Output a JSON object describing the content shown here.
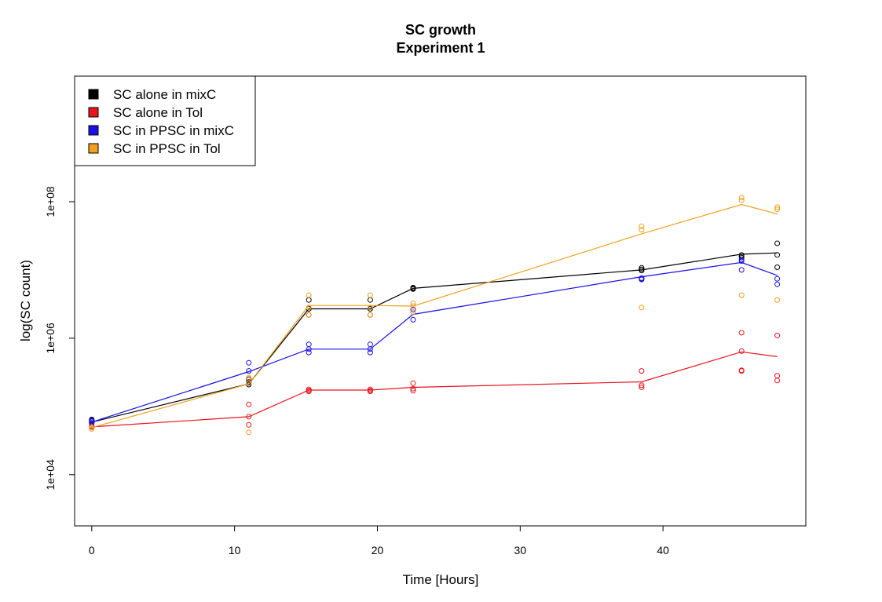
{
  "chart_data": {
    "type": "line",
    "title": "SC growth",
    "subtitle": "Experiment 1",
    "xlabel": "Time [Hours]",
    "ylabel": "log(SC count)",
    "y_scale": "log10",
    "xlim": [
      -1.2,
      50
    ],
    "ylim_log10": [
      3.25,
      9.84
    ],
    "x_ticks": [
      0,
      10,
      20,
      30,
      40
    ],
    "x_tick_labels": [
      "0",
      "10",
      "20",
      "30",
      "40"
    ],
    "y_ticks_log10": [
      4,
      6,
      8
    ],
    "y_tick_labels": [
      "1e+04",
      "1e+06",
      "1e+08"
    ],
    "grid": false,
    "legend_position": "top-left",
    "series": [
      {
        "name": "SC alone in mixC",
        "color": "#000000",
        "line_x": [
          0,
          11,
          15.2,
          19.5,
          22.5,
          38.5,
          45.5,
          48
        ],
        "line_log10": [
          4.77,
          5.33,
          6.43,
          6.43,
          6.73,
          7.0,
          7.23,
          7.25
        ],
        "points": [
          [
            0,
            4.76
          ],
          [
            0,
            4.79
          ],
          [
            0,
            4.81
          ],
          [
            11,
            5.32
          ],
          [
            11,
            5.36
          ],
          [
            11,
            5.4
          ],
          [
            15.2,
            6.56
          ],
          [
            15.2,
            6.43
          ],
          [
            15.2,
            6.34
          ],
          [
            19.5,
            6.56
          ],
          [
            19.5,
            6.43
          ],
          [
            19.5,
            6.34
          ],
          [
            22.5,
            6.74
          ],
          [
            22.5,
            6.73
          ],
          [
            22.5,
            6.72
          ],
          [
            38.5,
            7.03
          ],
          [
            38.5,
            7.01
          ],
          [
            38.5,
            6.99
          ],
          [
            45.5,
            7.22
          ],
          [
            45.5,
            7.2
          ],
          [
            45.5,
            7.18
          ],
          [
            48,
            7.39
          ],
          [
            48,
            7.22
          ],
          [
            48,
            7.04
          ]
        ]
      },
      {
        "name": "SC alone in Tol",
        "color": "#e8141e",
        "line_x": [
          0,
          11,
          15.2,
          19.5,
          22.5,
          38.5,
          45.5,
          48
        ],
        "line_log10": [
          4.7,
          4.85,
          5.24,
          5.24,
          5.28,
          5.36,
          5.8,
          5.73
        ],
        "points": [
          [
            0,
            4.69
          ],
          [
            0,
            4.71
          ],
          [
            0,
            4.72
          ],
          [
            11,
            5.03
          ],
          [
            11,
            4.85
          ],
          [
            11,
            4.73
          ],
          [
            15.2,
            5.25
          ],
          [
            15.2,
            5.23
          ],
          [
            15.2,
            5.22
          ],
          [
            19.5,
            5.25
          ],
          [
            19.5,
            5.23
          ],
          [
            19.5,
            5.22
          ],
          [
            22.5,
            5.34
          ],
          [
            22.5,
            5.26
          ],
          [
            22.5,
            5.23
          ],
          [
            38.5,
            5.52
          ],
          [
            38.5,
            5.31
          ],
          [
            38.5,
            5.28
          ],
          [
            45.5,
            6.08
          ],
          [
            45.5,
            5.81
          ],
          [
            45.5,
            5.53
          ],
          [
            45.5,
            5.52
          ],
          [
            48,
            6.04
          ],
          [
            48,
            5.45
          ],
          [
            48,
            5.38
          ]
        ]
      },
      {
        "name": "SC in PPSC in mixC",
        "color": "#1a10e6",
        "line_x": [
          0,
          11,
          15.2,
          19.5,
          22.5,
          38.5,
          45.5,
          48
        ],
        "line_log10": [
          4.77,
          5.51,
          5.84,
          5.84,
          6.35,
          6.9,
          7.11,
          6.92
        ],
        "points": [
          [
            0,
            4.76
          ],
          [
            0,
            4.78
          ],
          [
            0,
            4.8
          ],
          [
            11,
            5.64
          ],
          [
            11,
            5.52
          ],
          [
            11,
            5.35
          ],
          [
            15.2,
            5.91
          ],
          [
            15.2,
            5.84
          ],
          [
            15.2,
            5.79
          ],
          [
            19.5,
            5.91
          ],
          [
            19.5,
            5.84
          ],
          [
            19.5,
            5.79
          ],
          [
            22.5,
            6.42
          ],
          [
            22.5,
            6.38
          ],
          [
            22.5,
            6.27
          ],
          [
            38.5,
            6.88
          ],
          [
            38.5,
            6.87
          ],
          [
            38.5,
            6.86
          ],
          [
            45.5,
            7.15
          ],
          [
            45.5,
            7.13
          ],
          [
            45.5,
            7.0
          ],
          [
            48,
            6.87
          ],
          [
            48,
            6.79
          ]
        ]
      },
      {
        "name": "SC in PPSC in Tol",
        "color": "#f0a01e",
        "line_x": [
          0,
          11,
          15.2,
          19.5,
          22.5,
          38.5,
          45.5,
          48
        ],
        "line_log10": [
          4.69,
          5.33,
          6.48,
          6.48,
          6.47,
          7.53,
          7.96,
          7.82
        ],
        "points": [
          [
            0,
            4.67
          ],
          [
            0,
            4.69
          ],
          [
            11,
            5.42
          ],
          [
            11,
            5.34
          ],
          [
            11,
            4.62
          ],
          [
            15.2,
            6.63
          ],
          [
            15.2,
            6.45
          ],
          [
            15.2,
            6.34
          ],
          [
            19.5,
            6.63
          ],
          [
            19.5,
            6.45
          ],
          [
            19.5,
            6.34
          ],
          [
            22.5,
            6.51
          ],
          [
            22.5,
            6.47
          ],
          [
            22.5,
            6.38
          ],
          [
            38.5,
            7.64
          ],
          [
            38.5,
            7.59
          ],
          [
            38.5,
            6.45
          ],
          [
            45.5,
            8.06
          ],
          [
            45.5,
            8.02
          ],
          [
            45.5,
            6.63
          ],
          [
            48,
            7.92
          ],
          [
            48,
            7.89
          ],
          [
            48,
            6.56
          ]
        ]
      }
    ]
  }
}
